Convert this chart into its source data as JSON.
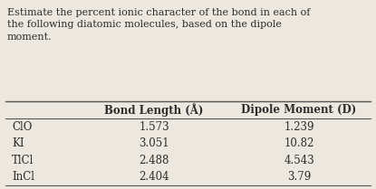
{
  "header_lines": [
    "Estimate the percent ionic character of the bond in each of",
    "the following diatomic molecules, based on the dipole",
    "moment."
  ],
  "col_headers": [
    "Bond Length (Å)",
    "Dipole Moment (D)"
  ],
  "rows": [
    [
      "ClO",
      "1.573",
      "1.239"
    ],
    [
      "KI",
      "3.051",
      "10.82"
    ],
    [
      "TlCl",
      "2.488",
      "4.543"
    ],
    [
      "InCl",
      "2.404",
      "3.79"
    ]
  ],
  "bg_color": "#ede8df",
  "text_color": "#2c2c2c",
  "line_color": "#555555",
  "header_fontsize": 8.0,
  "body_fontsize": 8.5,
  "col_header_fontsize": 8.5,
  "fig_width": 4.15,
  "fig_height": 2.09,
  "dpi": 100
}
